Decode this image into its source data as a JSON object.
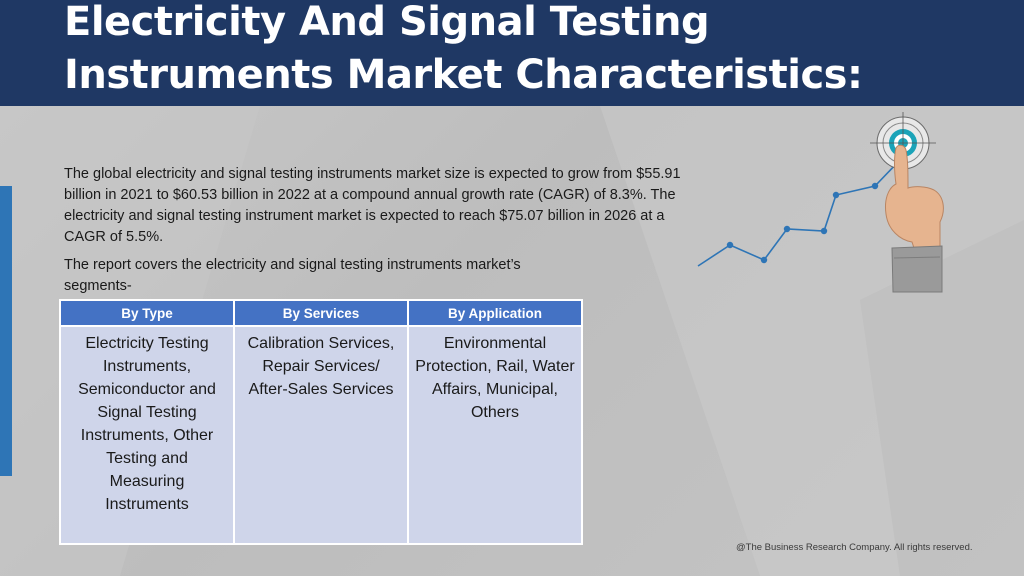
{
  "title_line1": "Electricity And Signal Testing",
  "title_line2": "Instruments Market Characteristics:",
  "paragraph1": "The global electricity and signal testing instruments market size is expected to grow from $55.91 billion in 2021 to $60.53 billion in 2022 at a compound annual growth rate (CAGR) of 8.3%. The electricity and signal testing instrument market is expected to reach $75.07 billion in 2026 at a CAGR of 5.5%.",
  "paragraph2": "The report covers the electricity and signal testing instruments market’s segments-",
  "table": {
    "headers": [
      "By Type",
      "By Services",
      "By Application"
    ],
    "cells": [
      "Electricity Testing Instruments, Semiconductor and Signal Testing Instruments, Other Testing and Measuring Instruments",
      "Calibration Services, Repair Services/ After-Sales Services",
      "Environmental Protection, Rail, Water Affairs, Municipal, Others"
    ]
  },
  "footer": "@The Business Research Company. All rights reserved.",
  "colors": {
    "header_bg": "#1f3864",
    "table_header_bg": "#4472c4",
    "table_cell_bg": "#cfd5ea",
    "accent_bar": "#2e75b6",
    "chart_line": "#2e75b6"
  },
  "icons": [
    "growth-line-icon",
    "target-icon",
    "pointing-hand-icon"
  ]
}
